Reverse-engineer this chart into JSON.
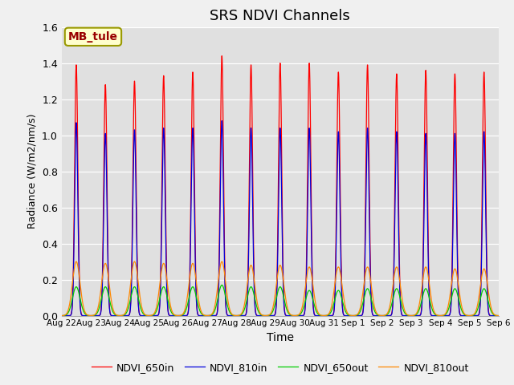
{
  "title": "SRS NDVI Channels",
  "xlabel": "Time",
  "ylabel": "Radiance (W/m2/nm/s)",
  "ylim": [
    0,
    1.6
  ],
  "background_color": "#e0e0e0",
  "fig_bg": "#f0f0f0",
  "annotation_text": "MB_tule",
  "annotation_color": "#990000",
  "annotation_bg": "#ffffcc",
  "annotation_border": "#999900",
  "channels": [
    "NDVI_650in",
    "NDVI_810in",
    "NDVI_650out",
    "NDVI_810out"
  ],
  "colors": [
    "#ff0000",
    "#0000dd",
    "#00cc00",
    "#ff8800"
  ],
  "num_days": 15,
  "peaks_650in": [
    1.39,
    1.28,
    1.3,
    1.33,
    1.35,
    1.44,
    1.39,
    1.4,
    1.4,
    1.35,
    1.39,
    1.34,
    1.36,
    1.34,
    1.35
  ],
  "peaks_810in": [
    1.07,
    1.01,
    1.03,
    1.04,
    1.04,
    1.08,
    1.04,
    1.04,
    1.04,
    1.02,
    1.04,
    1.02,
    1.01,
    1.01,
    1.02
  ],
  "peaks_650out": [
    0.16,
    0.16,
    0.16,
    0.16,
    0.16,
    0.17,
    0.16,
    0.16,
    0.14,
    0.14,
    0.15,
    0.15,
    0.15,
    0.15,
    0.15
  ],
  "peaks_810out": [
    0.3,
    0.29,
    0.3,
    0.29,
    0.29,
    0.3,
    0.28,
    0.28,
    0.27,
    0.27,
    0.27,
    0.27,
    0.27,
    0.26,
    0.26
  ],
  "xtick_labels": [
    "Aug 22",
    "Aug 23",
    "Aug 24",
    "Aug 25",
    "Aug 26",
    "Aug 27",
    "Aug 28",
    "Aug 29",
    "Aug 30",
    "Aug 31",
    "Sep 1",
    "Sep 2",
    "Sep 3",
    "Sep 4",
    "Sep 5",
    "Sep 6"
  ],
  "xtick_positions": [
    0,
    1,
    2,
    3,
    4,
    5,
    6,
    7,
    8,
    9,
    10,
    11,
    12,
    13,
    14,
    15
  ],
  "linewidth": 0.9
}
